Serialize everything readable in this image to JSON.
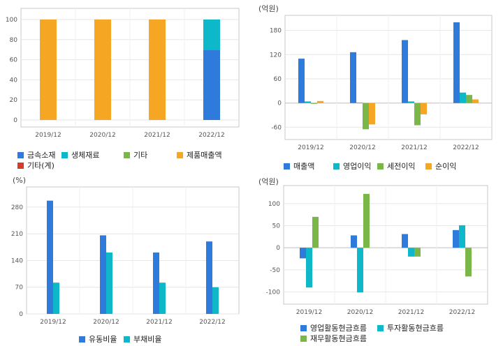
{
  "chart_data": [
    {
      "id": "sales-composition",
      "type": "bar",
      "stacked": true,
      "unit_label": "",
      "categories": [
        "2019/12",
        "2020/12",
        "2021/12",
        "2022/12"
      ],
      "series": [
        {
          "name": "금속소재",
          "color": "#2e7bdc",
          "values": [
            0,
            0,
            0,
            70
          ]
        },
        {
          "name": "생체재료",
          "color": "#0fb8c8",
          "values": [
            0,
            0,
            0,
            30
          ]
        },
        {
          "name": "기타",
          "color": "#7ab648",
          "values": [
            0,
            0,
            0,
            0
          ]
        },
        {
          "name": "제품매출액",
          "color": "#f5a623",
          "values": [
            100,
            100,
            100,
            0
          ]
        },
        {
          "name": "기타(계)",
          "color": "#d93b2b",
          "values": [
            0,
            0,
            0,
            0
          ]
        }
      ],
      "ylim": [
        0,
        100
      ],
      "yticks": [
        0,
        20,
        40,
        60,
        80,
        100
      ],
      "grid": true,
      "legend_position": "bottom"
    },
    {
      "id": "profit",
      "type": "bar",
      "unit_label": "(억원)",
      "categories": [
        "2019/12",
        "2020/12",
        "2021/12",
        "2022/12"
      ],
      "series": [
        {
          "name": "매출액",
          "color": "#2e7bdc",
          "values": [
            110,
            126,
            156,
            200
          ]
        },
        {
          "name": "영업이익",
          "color": "#0fb8c8",
          "values": [
            4,
            1,
            4,
            26
          ]
        },
        {
          "name": "세전이익",
          "color": "#7ab648",
          "values": [
            -2,
            -65,
            -55,
            20
          ]
        },
        {
          "name": "순이익",
          "color": "#f5a623",
          "values": [
            5,
            -53,
            -28,
            9
          ]
        }
      ],
      "ylim": [
        -80,
        200
      ],
      "yticks": [
        -60,
        0,
        60,
        120,
        180
      ],
      "grid": true,
      "legend_position": "bottom"
    },
    {
      "id": "ratios",
      "type": "bar",
      "unit_label": "(%)",
      "categories": [
        "2019/12",
        "2020/12",
        "2021/12",
        "2022/12"
      ],
      "series": [
        {
          "name": "유동비율",
          "color": "#2e7bdc",
          "values": [
            297,
            206,
            161,
            190
          ]
        },
        {
          "name": "부채비율",
          "color": "#0fb8c8",
          "values": [
            82,
            161,
            82,
            70
          ]
        }
      ],
      "ylim": [
        0,
        300
      ],
      "yticks": [
        0,
        70,
        140,
        210,
        280
      ],
      "grid": true,
      "legend_position": "bottom"
    },
    {
      "id": "cashflow",
      "type": "bar",
      "unit_label": "(억원)",
      "categories": [
        "2019/12",
        "2020/12",
        "2021/12",
        "2022/12"
      ],
      "series": [
        {
          "name": "영업활동현금흐름",
          "color": "#2e7bdc",
          "values": [
            -24,
            28,
            31,
            40
          ]
        },
        {
          "name": "투자활동현금흐름",
          "color": "#0fb8c8",
          "values": [
            -90,
            -101,
            -20,
            51
          ]
        },
        {
          "name": "재무활동현금흐름",
          "color": "#7ab648",
          "values": [
            70,
            122,
            -20,
            -65
          ]
        }
      ],
      "ylim": [
        -115,
        125
      ],
      "yticks": [
        -100,
        -50,
        0,
        50,
        100
      ],
      "grid": true,
      "legend_position": "bottom"
    }
  ]
}
